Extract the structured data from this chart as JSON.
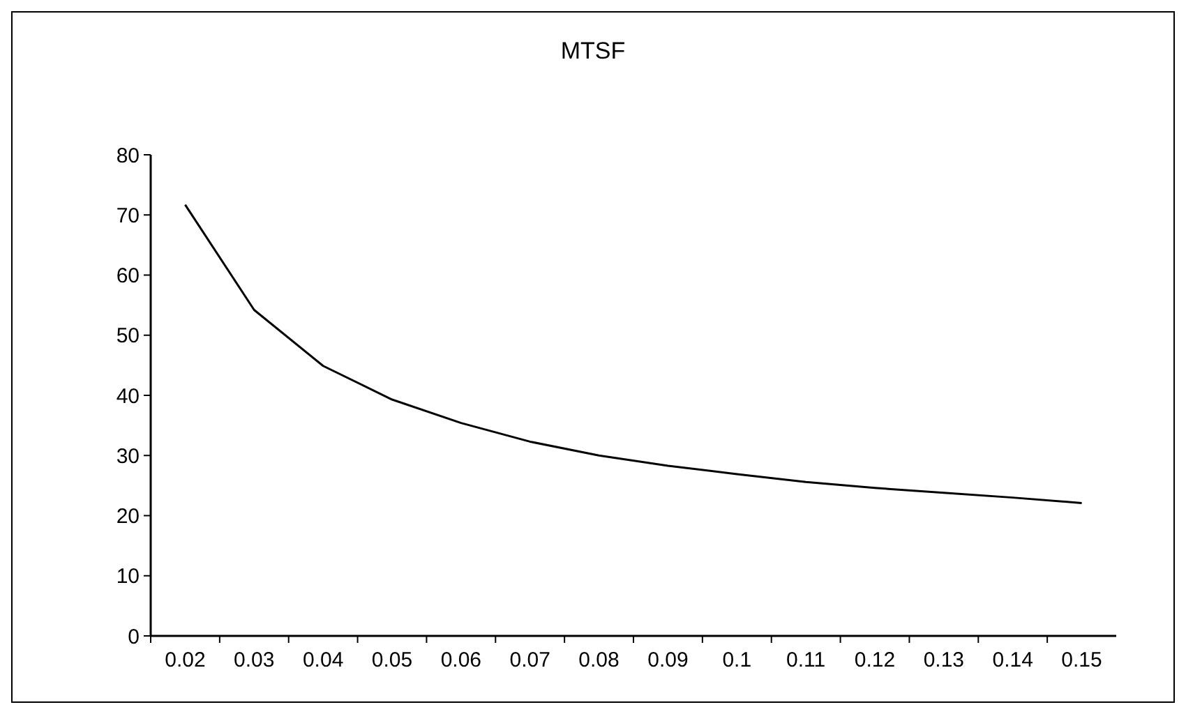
{
  "chart_data": {
    "type": "line",
    "title": "MTSF",
    "categories": [
      "0.02",
      "0.03",
      "0.04",
      "0.05",
      "0.06",
      "0.07",
      "0.08",
      "0.09",
      "0.1",
      "0.11",
      "0.12",
      "0.13",
      "0.14",
      "0.15"
    ],
    "series": [
      {
        "color": "#000000",
        "values": [
          71.7,
          54.2,
          44.9,
          39.3,
          35.4,
          32.3,
          30.0,
          28.3,
          26.9,
          25.6,
          24.6,
          23.8,
          23.0,
          22.1
        ]
      }
    ],
    "ylim": [
      0,
      80
    ],
    "yticks": [
      0,
      10,
      20,
      30,
      40,
      50,
      60,
      70,
      80
    ],
    "grid": false,
    "marker": "none",
    "line_style": "solid"
  }
}
